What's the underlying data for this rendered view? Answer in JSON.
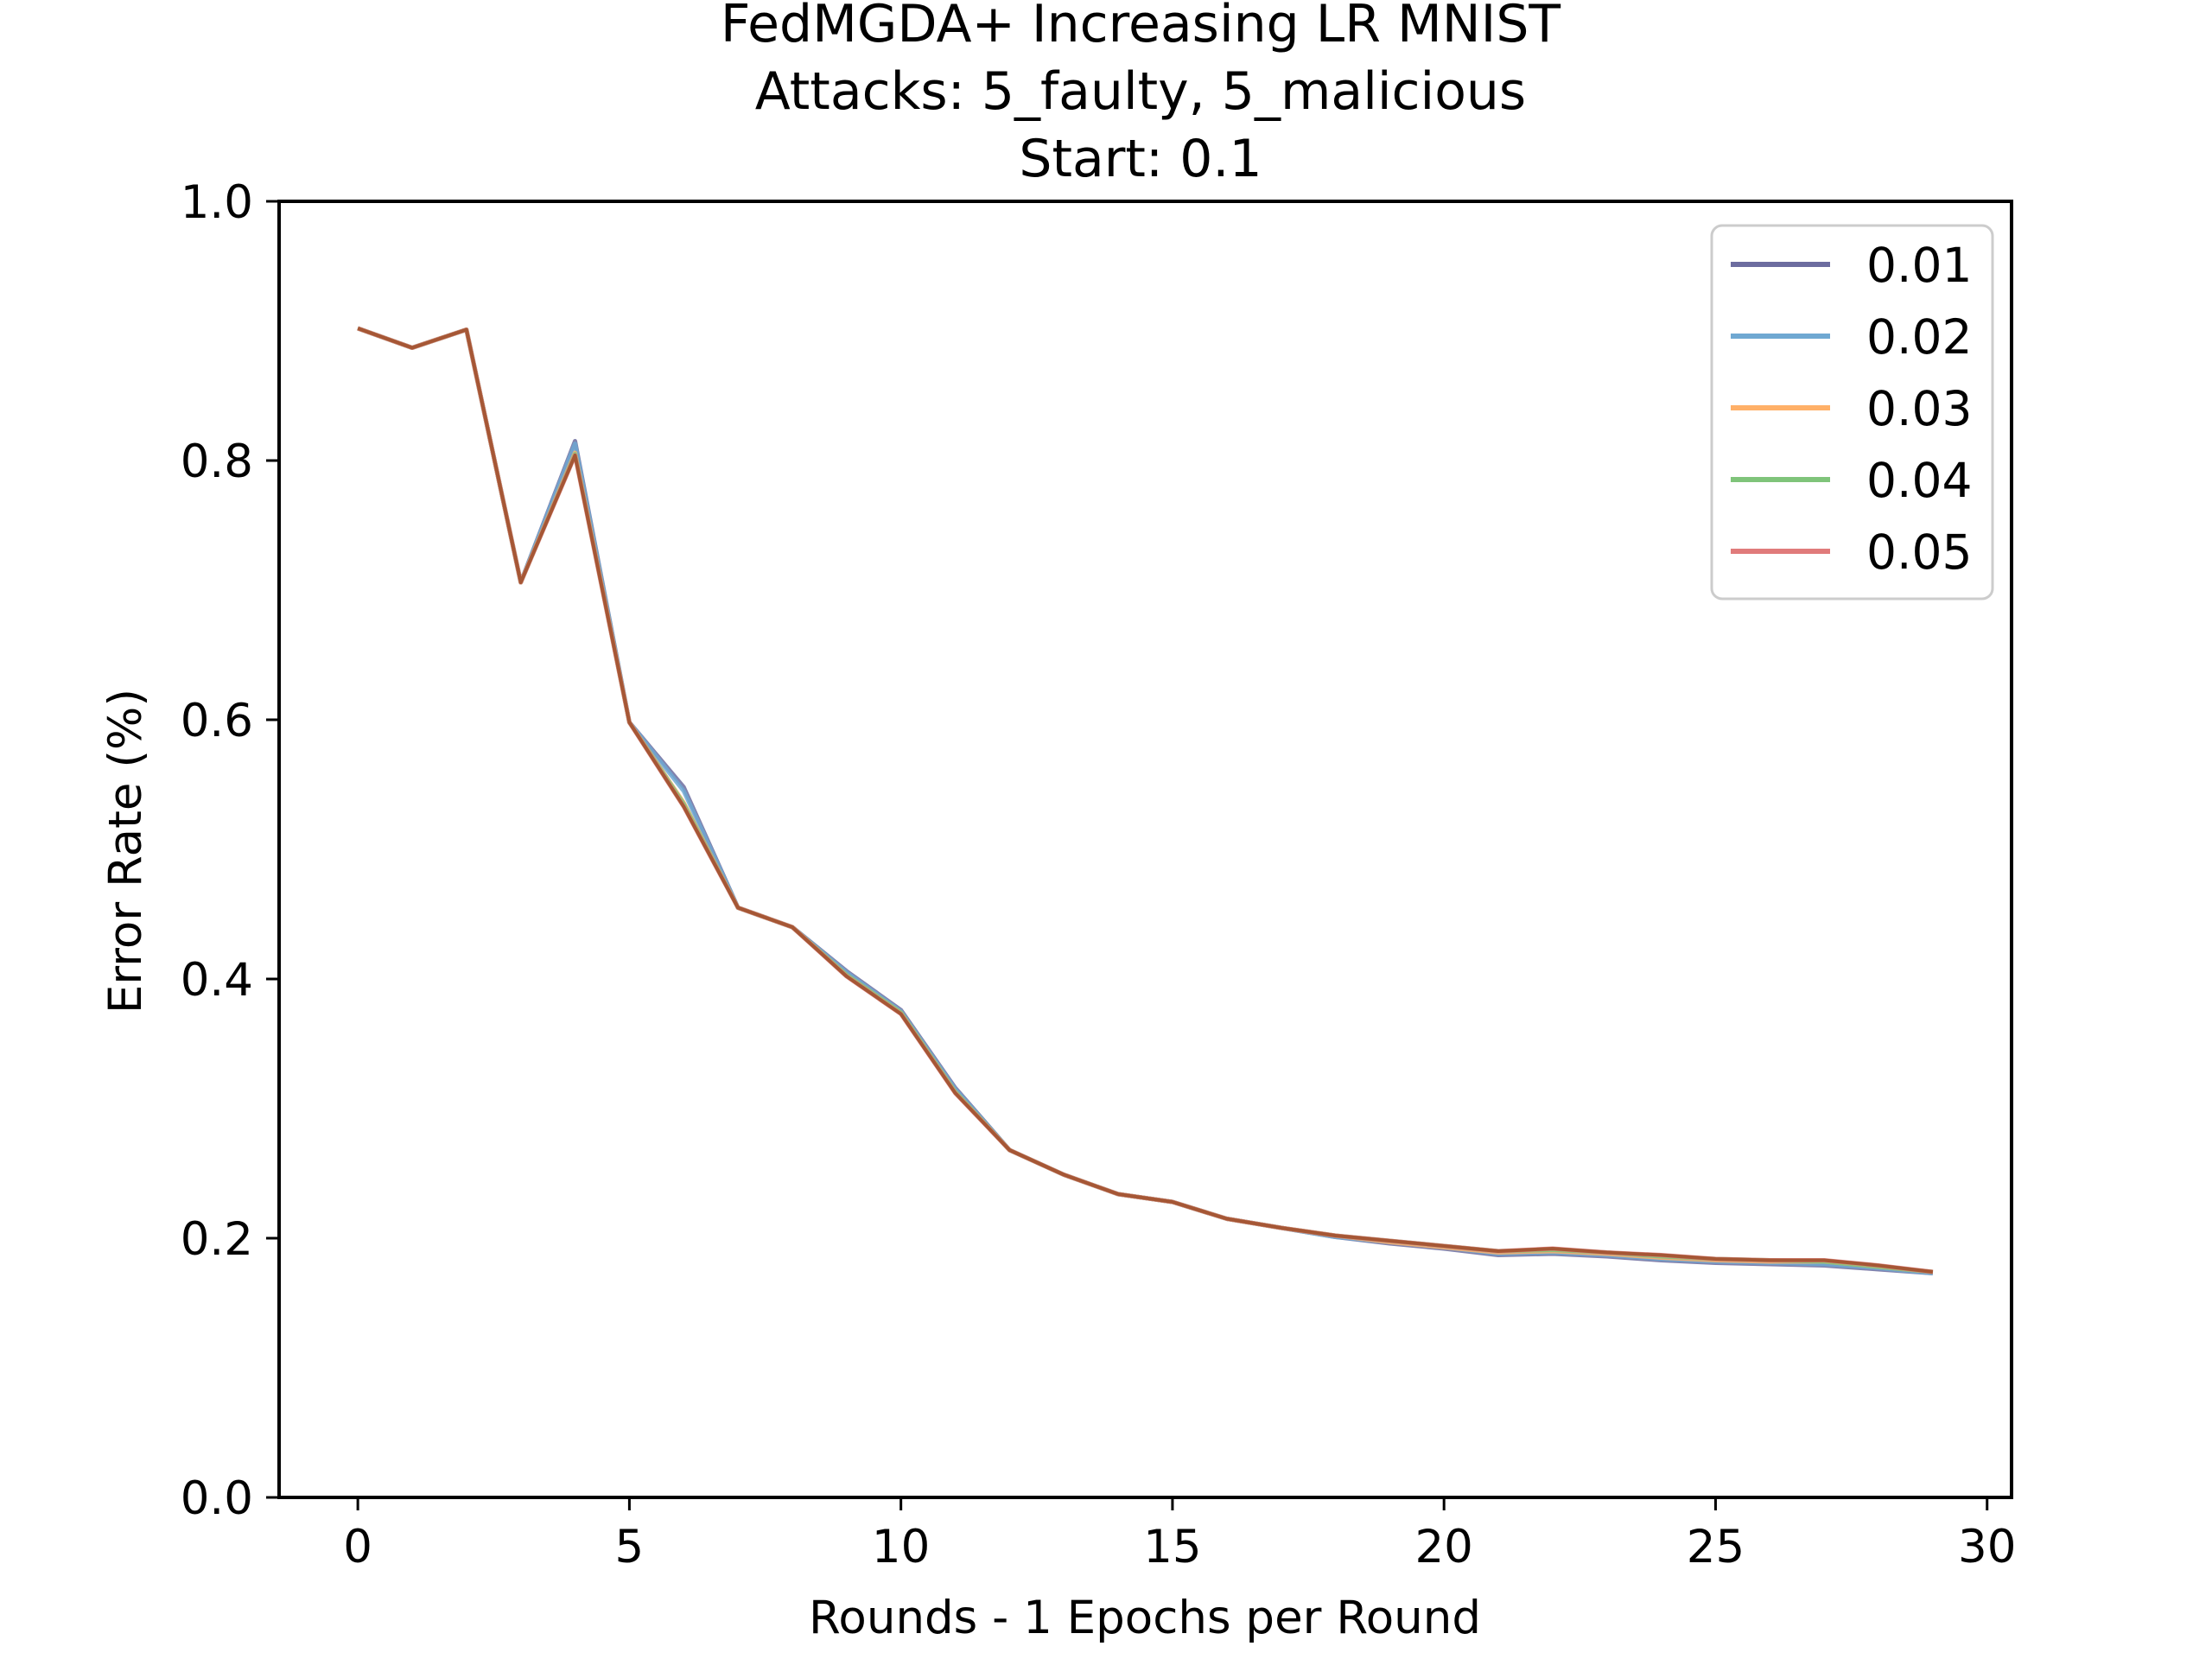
{
  "chart_data": {
    "type": "line",
    "title_lines": [
      "FedMGDA+ Increasing LR MNIST",
      "Attacks: 5_faulty, 5_malicious",
      "Start: 0.1"
    ],
    "xlabel": "Rounds - 1 Epochs per Round",
    "ylabel": "Error Rate (%)",
    "xlim": [
      -1.45,
      30.45
    ],
    "ylim": [
      0.0,
      1.0
    ],
    "xticks": [
      0,
      5,
      10,
      15,
      20,
      25,
      30
    ],
    "xtick_labels": [
      "0",
      "5",
      "10",
      "15",
      "20",
      "25",
      "30"
    ],
    "yticks": [
      0.0,
      0.2,
      0.4,
      0.6,
      0.8,
      1.0
    ],
    "ytick_labels": [
      "0.0",
      "0.2",
      "0.4",
      "0.6",
      "0.8",
      "1.0"
    ],
    "grid": false,
    "legend_position": "upper-right",
    "x": [
      0,
      1,
      2,
      3,
      4,
      5,
      6,
      7,
      8,
      9,
      10,
      11,
      12,
      13,
      14,
      15,
      16,
      17,
      18,
      19,
      20,
      21,
      22,
      23,
      24,
      25,
      26,
      27,
      28,
      29
    ],
    "series": [
      {
        "name": "0.01",
        "color": "#6c6c9f",
        "values": [
          0.902,
          0.887,
          0.901,
          0.706,
          0.815,
          0.598,
          0.548,
          0.455,
          0.44,
          0.406,
          0.376,
          0.316,
          0.268,
          0.249,
          0.234,
          0.228,
          0.215,
          0.208,
          0.201,
          0.196,
          0.192,
          0.187,
          0.188,
          0.186,
          0.183,
          0.181,
          0.18,
          0.179,
          0.176,
          0.173
        ]
      },
      {
        "name": "0.02",
        "color": "#6fa8d2",
        "values": [
          0.902,
          0.887,
          0.901,
          0.706,
          0.813,
          0.598,
          0.545,
          0.455,
          0.44,
          0.405,
          0.375,
          0.315,
          0.268,
          0.249,
          0.234,
          0.228,
          0.215,
          0.208,
          0.201,
          0.197,
          0.193,
          0.188,
          0.189,
          0.187,
          0.184,
          0.182,
          0.181,
          0.18,
          0.177,
          0.173
        ]
      },
      {
        "name": "0.03",
        "color": "#ffb068",
        "values": [
          0.902,
          0.887,
          0.901,
          0.706,
          0.806,
          0.598,
          0.536,
          0.455,
          0.44,
          0.403,
          0.374,
          0.313,
          0.268,
          0.249,
          0.234,
          0.228,
          0.215,
          0.208,
          0.202,
          0.197,
          0.193,
          0.189,
          0.19,
          0.188,
          0.185,
          0.183,
          0.182,
          0.182,
          0.178,
          0.174
        ]
      },
      {
        "name": "0.04",
        "color": "#7fc47a",
        "values": [
          0.902,
          0.887,
          0.901,
          0.706,
          0.805,
          0.598,
          0.535,
          0.455,
          0.44,
          0.403,
          0.374,
          0.313,
          0.268,
          0.249,
          0.234,
          0.228,
          0.215,
          0.208,
          0.202,
          0.198,
          0.194,
          0.19,
          0.191,
          0.189,
          0.186,
          0.184,
          0.183,
          0.182,
          0.178,
          0.174
        ]
      },
      {
        "name": "0.05",
        "color": "#e07b7b",
        "values": [
          0.902,
          0.887,
          0.901,
          0.706,
          0.804,
          0.598,
          0.533,
          0.455,
          0.44,
          0.402,
          0.373,
          0.312,
          0.268,
          0.249,
          0.234,
          0.228,
          0.215,
          0.208,
          0.202,
          0.198,
          0.194,
          0.19,
          0.192,
          0.189,
          0.187,
          0.184,
          0.183,
          0.183,
          0.179,
          0.174
        ]
      }
    ],
    "overlay_color": "#a0522d"
  }
}
